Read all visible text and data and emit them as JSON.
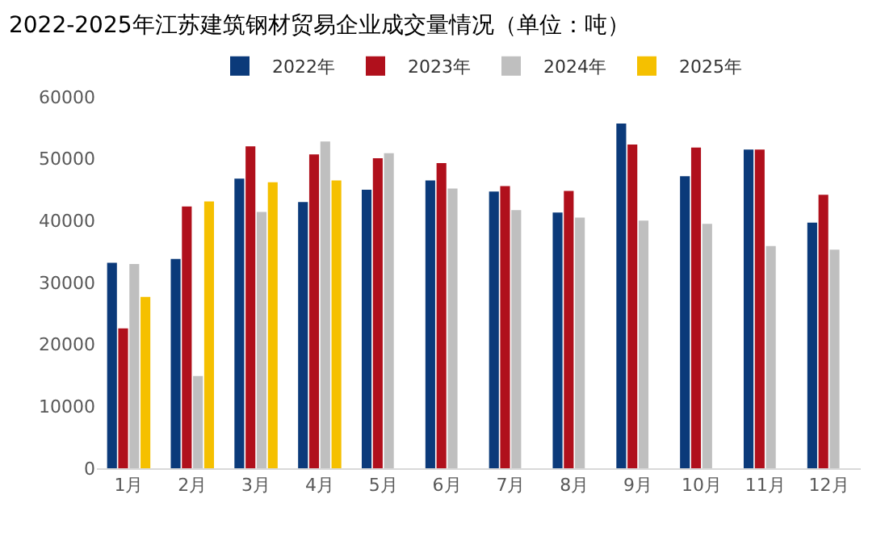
{
  "chart_data": {
    "type": "bar",
    "title": "2022-2025年江苏建筑钢材贸易企业成交量情况（单位：吨）",
    "categories": [
      "1月",
      "2月",
      "3月",
      "4月",
      "5月",
      "6月",
      "7月",
      "8月",
      "9月",
      "10月",
      "11月",
      "12月"
    ],
    "series": [
      {
        "name": "2022年",
        "color": "#0b3a7a",
        "values": [
          33200,
          33800,
          46800,
          43000,
          45000,
          46500,
          44700,
          41300,
          55700,
          47200,
          51500,
          39700
        ]
      },
      {
        "name": "2023年",
        "color": "#b0101c",
        "values": [
          22600,
          42300,
          52000,
          50700,
          50100,
          49300,
          45600,
          44800,
          52300,
          51800,
          51500,
          44200
        ]
      },
      {
        "name": "2024年",
        "color": "#bfbfbf",
        "values": [
          33000,
          14900,
          41400,
          52800,
          50900,
          45200,
          41700,
          40500,
          40000,
          39500,
          35900,
          35300
        ]
      },
      {
        "name": "2025年",
        "color": "#f5c000",
        "values": [
          27700,
          43100,
          46200,
          46500,
          null,
          null,
          null,
          null,
          null,
          null,
          null,
          null
        ]
      }
    ],
    "ylim": [
      0,
      60000
    ],
    "yticks": [
      0,
      10000,
      20000,
      30000,
      40000,
      50000,
      60000
    ],
    "grid": false,
    "legend": "top"
  }
}
